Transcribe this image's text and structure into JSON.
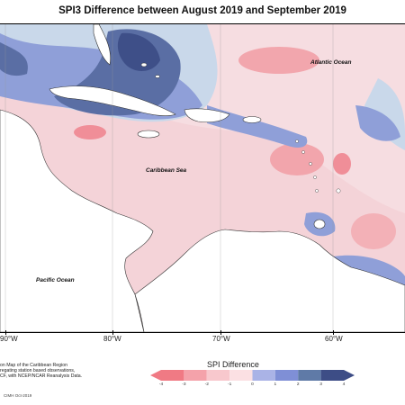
{
  "title": "SPI3 Difference between August 2019 and September 2019",
  "labels": {
    "atlantic": "Atlantic Ocean",
    "caribbean": "Caribbean Sea",
    "pacific": "Pacific Ocean"
  },
  "longitudes": [
    "90°W",
    "80°W",
    "70°W",
    "60°W"
  ],
  "note_lines": [
    "on Map of the Caribbean Region",
    "regating station based observations,",
    "CF, with NCEP/NCAR Reanalysis Data."
  ],
  "credit": "CIMH Oct-2019",
  "legend": {
    "title": "SPI Difference",
    "ticks": [
      "-4",
      "-3",
      "-2",
      "-1",
      "0",
      "1",
      "2",
      "3",
      "4"
    ],
    "colors": [
      "#f07a84",
      "#f4a2aa",
      "#f8c8cd",
      "#fbe0e3",
      "#e3eef3",
      "#aab3e6",
      "#7f8fd6",
      "#5f7aa7",
      "#3d4d86"
    ]
  }
}
